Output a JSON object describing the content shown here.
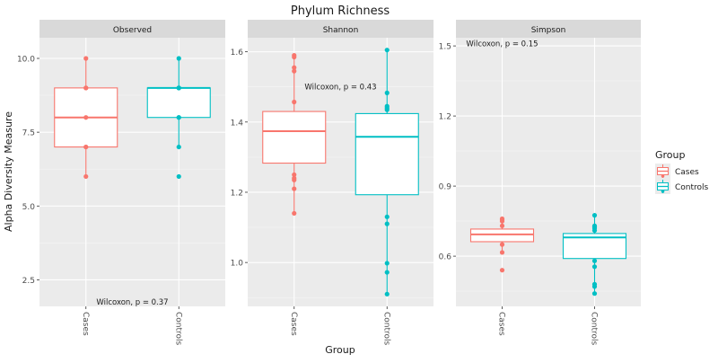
{
  "chart_data": {
    "type": "box",
    "title": "Phylum Richness",
    "xlabel": "Group",
    "ylabel": "Alpha Diversity Measure",
    "categories": [
      "Cases",
      "Controls"
    ],
    "legend": {
      "title": "Group",
      "placement": "right",
      "entries": [
        {
          "label": "Cases",
          "color": "#F8766D"
        },
        {
          "label": "Controls",
          "color": "#00BFC4"
        }
      ]
    },
    "grid": true,
    "panels": [
      {
        "name": "Observed",
        "ylim": [
          1.6,
          10.7
        ],
        "yticks": [
          2.5,
          5.0,
          7.5,
          10.0
        ],
        "ytick_labels": [
          "2.5",
          "5.0",
          "7.5",
          "10.0"
        ],
        "annotation": {
          "text": "Wilcoxon, p = 0.37",
          "x": 1.5,
          "y": 1.75
        },
        "groups": [
          {
            "group": "Cases",
            "whisker_low": 6,
            "q1": 7,
            "median": 8,
            "q3": 9,
            "whisker_high": 10,
            "points": [
              10,
              9,
              9,
              8,
              7,
              7,
              6
            ]
          },
          {
            "group": "Controls",
            "whisker_low": 7,
            "q1": 8,
            "median": 9,
            "q3": 9,
            "whisker_high": 10,
            "points": [
              10,
              9,
              9,
              9,
              8,
              8,
              7,
              6
            ]
          }
        ]
      },
      {
        "name": "Shannon",
        "ylim": [
          0.875,
          1.64
        ],
        "yticks": [
          1.0,
          1.2,
          1.4,
          1.6
        ],
        "ytick_labels": [
          "1.0",
          "1.2",
          "1.4",
          "1.6"
        ],
        "annotation": {
          "text": "Wilcoxon, p = 0.43",
          "x": 1.5,
          "y": 1.5
        },
        "groups": [
          {
            "group": "Cases",
            "whisker_low": 1.14,
            "q1": 1.283,
            "median": 1.374,
            "q3": 1.43,
            "whisker_high": 1.59,
            "points": [
              1.59,
              1.585,
              1.555,
              1.545,
              1.457,
              1.25,
              1.24,
              1.235,
              1.21,
              1.14
            ]
          },
          {
            "group": "Controls",
            "whisker_low": 0.91,
            "q1": 1.193,
            "median": 1.358,
            "q3": 1.424,
            "whisker_high": 1.605,
            "points": [
              1.605,
              1.483,
              1.445,
              1.44,
              1.435,
              1.13,
              1.11,
              0.998,
              0.972,
              0.91
            ]
          }
        ]
      },
      {
        "name": "Simpson",
        "ylim": [
          0.385,
          1.535
        ],
        "yticks": [
          0.6,
          0.9,
          1.2,
          1.5
        ],
        "ytick_labels": [
          "0.6",
          "0.9",
          "1.2",
          "1.5"
        ],
        "annotation": {
          "text": "Wilcoxon, p = 0.15",
          "x": 1.0,
          "y": 1.51
        },
        "groups": [
          {
            "group": "Cases",
            "whisker_low": 0.616,
            "q1": 0.662,
            "median": 0.693,
            "q3": 0.716,
            "whisker_high": 0.76,
            "points": [
              0.76,
              0.755,
              0.75,
              0.73,
              0.65,
              0.616,
              0.54
            ]
          },
          {
            "group": "Controls",
            "whisker_low": 0.44,
            "q1": 0.59,
            "median": 0.68,
            "q3": 0.697,
            "whisker_high": 0.775,
            "points": [
              0.775,
              0.73,
              0.725,
              0.72,
              0.71,
              0.58,
              0.555,
              0.48,
              0.47,
              0.44
            ]
          }
        ]
      }
    ]
  }
}
